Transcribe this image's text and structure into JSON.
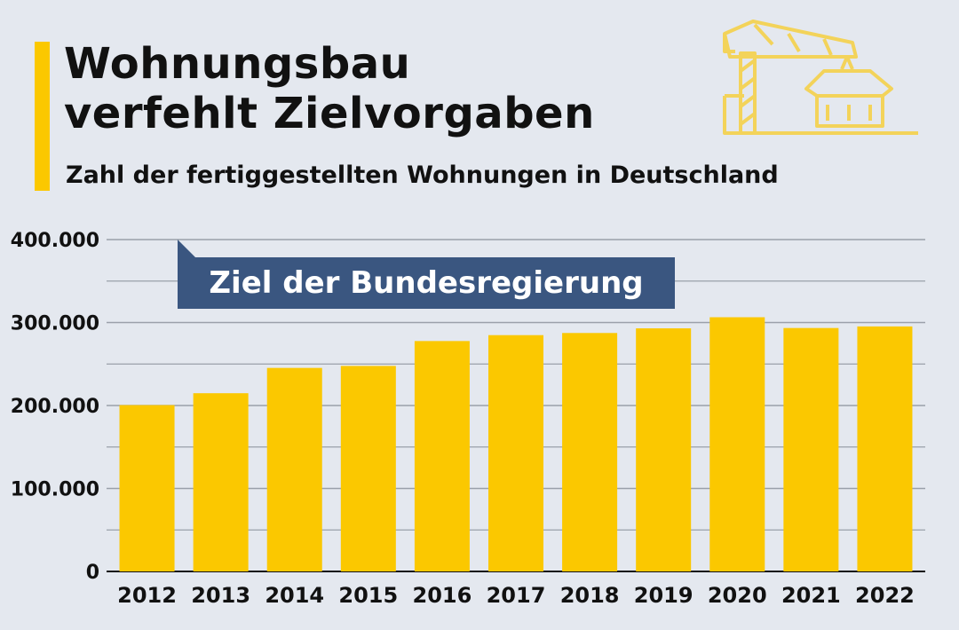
{
  "header": {
    "title": "Wohnungsbau\nverfehlt Zielvorgaben",
    "subtitle": "Zahl der fertiggestellten Wohnungen in Deutschland"
  },
  "icons": {
    "logo": "construction-crane-icon"
  },
  "colors": {
    "accent": "#fbc800",
    "bar": "#fbc800",
    "callout": "#3a5680",
    "grid": "#9aa0aa",
    "background": "#e4e8ef"
  },
  "chart_data": {
    "type": "bar",
    "categories": [
      "2012",
      "2013",
      "2014",
      "2015",
      "2016",
      "2017",
      "2018",
      "2019",
      "2020",
      "2021",
      "2022"
    ],
    "values": [
      200500,
      214800,
      245300,
      247700,
      277700,
      284800,
      287400,
      293000,
      306400,
      293400,
      295300
    ],
    "ylim": [
      0,
      400000
    ],
    "yticks": [
      0,
      100000,
      200000,
      300000,
      400000
    ],
    "ytick_labels": [
      "0",
      "100.000",
      "200.000",
      "300.000",
      "400.000"
    ],
    "grid": true,
    "target": {
      "value": 400000,
      "label": "Ziel der Bundesregierung"
    }
  }
}
